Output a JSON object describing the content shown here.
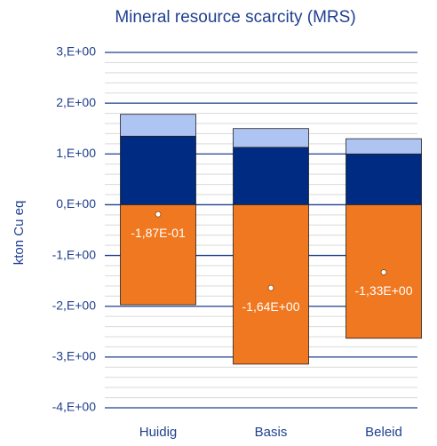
{
  "chart_data": {
    "type": "bar",
    "stacked": true,
    "title": "Mineral resource scarcity (MRS)",
    "y_label": "kton Cu eq",
    "categories": [
      "Huidig",
      "Basis",
      "Beleid"
    ],
    "series": [
      {
        "color": "#002b82",
        "values": [
          1.35,
          1.13,
          1.0
        ]
      },
      {
        "color": "#aec4f3",
        "values": [
          0.43,
          0.37,
          0.3
        ]
      },
      {
        "color": "#f07820",
        "values": [
          -1.97,
          -3.14,
          -2.63
        ]
      },
      {
        "type": "marker",
        "color": "#ffffff",
        "values": [
          -0.187,
          -1.64,
          -1.33
        ],
        "value_labels": [
          "-1,87E-01",
          "-1,64E+00",
          "-1,33E+00"
        ]
      }
    ],
    "ylim": [
      -4,
      3
    ],
    "yticks": [
      {
        "value": -4,
        "label": "-4,E+00"
      },
      {
        "value": -3,
        "label": "-3,E+00"
      },
      {
        "value": -2,
        "label": "-2,E+00"
      },
      {
        "value": -1,
        "label": "-1,E+00"
      },
      {
        "value": 0,
        "label": "0,E+00"
      },
      {
        "value": 1,
        "label": "1,E+00"
      },
      {
        "value": 2,
        "label": "2,E+00"
      },
      {
        "value": 3,
        "label": "3,E+00"
      }
    ],
    "grid": true,
    "minor_grid": true
  }
}
